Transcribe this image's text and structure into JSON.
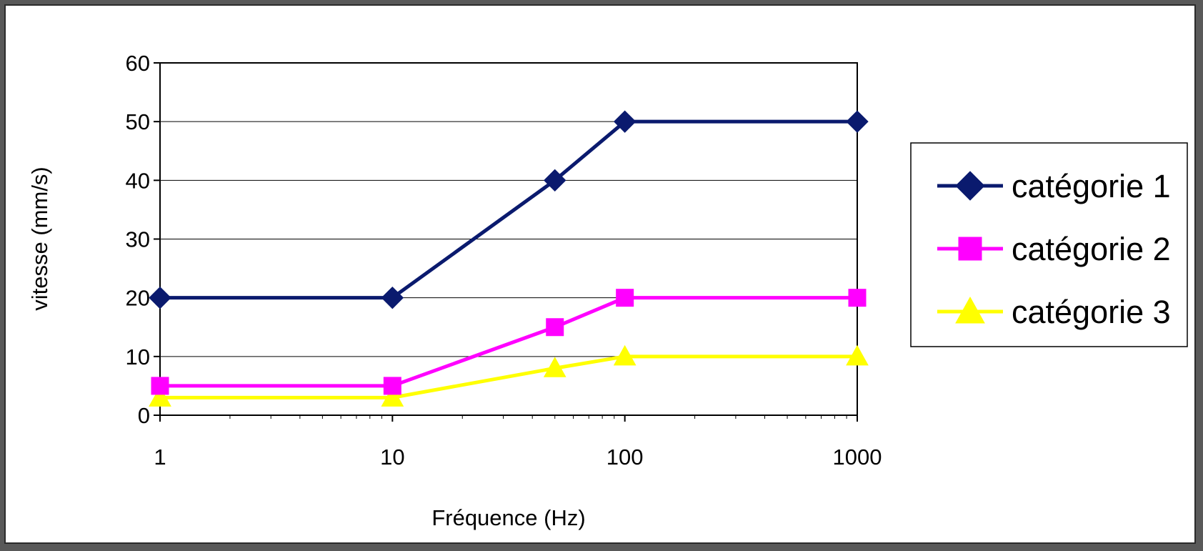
{
  "chart_data": {
    "type": "line",
    "x_scale": "log",
    "x": [
      1,
      10,
      50,
      100,
      1000
    ],
    "x_tick_labels": [
      "1",
      "10",
      "100",
      "1000"
    ],
    "x_ticks": [
      1,
      10,
      100,
      1000
    ],
    "xlim": [
      1,
      1000
    ],
    "ylim": [
      0,
      60
    ],
    "y_ticks": [
      0,
      10,
      20,
      30,
      40,
      50,
      60
    ],
    "xlabel": "Fréquence (Hz)",
    "ylabel": "vitesse (mm/s)",
    "grid": "horizontal",
    "legend_position": "right",
    "series": [
      {
        "name": "catégorie 1",
        "values": [
          20,
          20,
          40,
          50,
          50
        ],
        "color": "#0a1a6e",
        "marker": "diamond"
      },
      {
        "name": "catégorie 2",
        "values": [
          5,
          5,
          15,
          20,
          20
        ],
        "color": "#ff00ff",
        "marker": "square"
      },
      {
        "name": "catégorie 3",
        "values": [
          3,
          3,
          8,
          10,
          10
        ],
        "color": "#ffff00",
        "marker": "triangle"
      }
    ]
  }
}
